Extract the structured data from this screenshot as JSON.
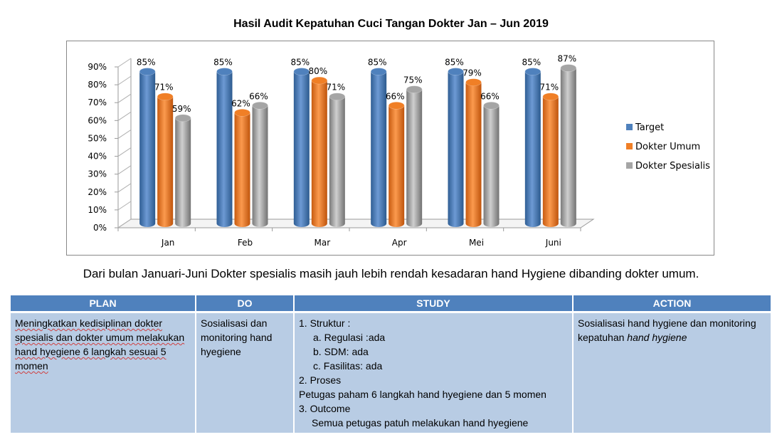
{
  "chart_data": {
    "type": "bar",
    "title": "Hasil Audit Kepatuhan Cuci Tangan Dokter Jan – Jun 2019",
    "categories": [
      "Jan",
      "Feb",
      "Mar",
      "Apr",
      "Mei",
      "Juni"
    ],
    "series": [
      {
        "name": "Target",
        "values": [
          85,
          85,
          85,
          85,
          85,
          85
        ],
        "labels": [
          "85%",
          "85%",
          "85%",
          "85%",
          "85%",
          "85%"
        ],
        "color": "#4f81bd"
      },
      {
        "name": "Dokter Umum",
        "values": [
          71,
          62,
          80,
          66,
          79,
          71
        ],
        "labels": [
          "71%",
          "62%",
          "80%",
          "66%",
          "79%",
          "71%"
        ],
        "color": "#f07f26"
      },
      {
        "name": "Dokter Spesialis",
        "values": [
          59,
          66,
          71,
          75,
          66,
          87
        ],
        "labels": [
          "59%",
          "66%",
          "71%",
          "75%",
          "66%",
          "87%"
        ],
        "color": "#a5a5a5"
      }
    ],
    "ylim": [
      0,
      90
    ],
    "yticks": [
      "0%",
      "10%",
      "20%",
      "30%",
      "40%",
      "50%",
      "60%",
      "70%",
      "80%",
      "90%"
    ],
    "legend_position": "right",
    "style": "3d-cylinder"
  },
  "summary": "Dari bulan Januari-Juni Dokter spesialis masih jauh lebih rendah kesadaran hand Hygiene dibanding dokter umum.",
  "table": {
    "headers": [
      "PLAN",
      "DO",
      "STUDY",
      "ACTION"
    ],
    "plan": "Meningkatkan kedisiplinan dokter spesialis dan dokter umum melakukan hand hyegiene 6 langkah sesuai 5 momen",
    "do": "Sosialisasi dan monitoring hand hyegiene",
    "study": [
      "1. Struktur :",
      "a. Regulasi :ada",
      "b. SDM: ada",
      "c. Fasilitas: ada",
      "2. Proses",
      "Petugas paham 6 langkah hand hyegiene dan 5 momen",
      "3. Outcome",
      "Semua petugas patuh melakukan hand hyegiene"
    ],
    "action_prefix": "Sosialisasi hand hygiene dan monitoring kepatuhan ",
    "action_italic": "hand hygiene"
  }
}
